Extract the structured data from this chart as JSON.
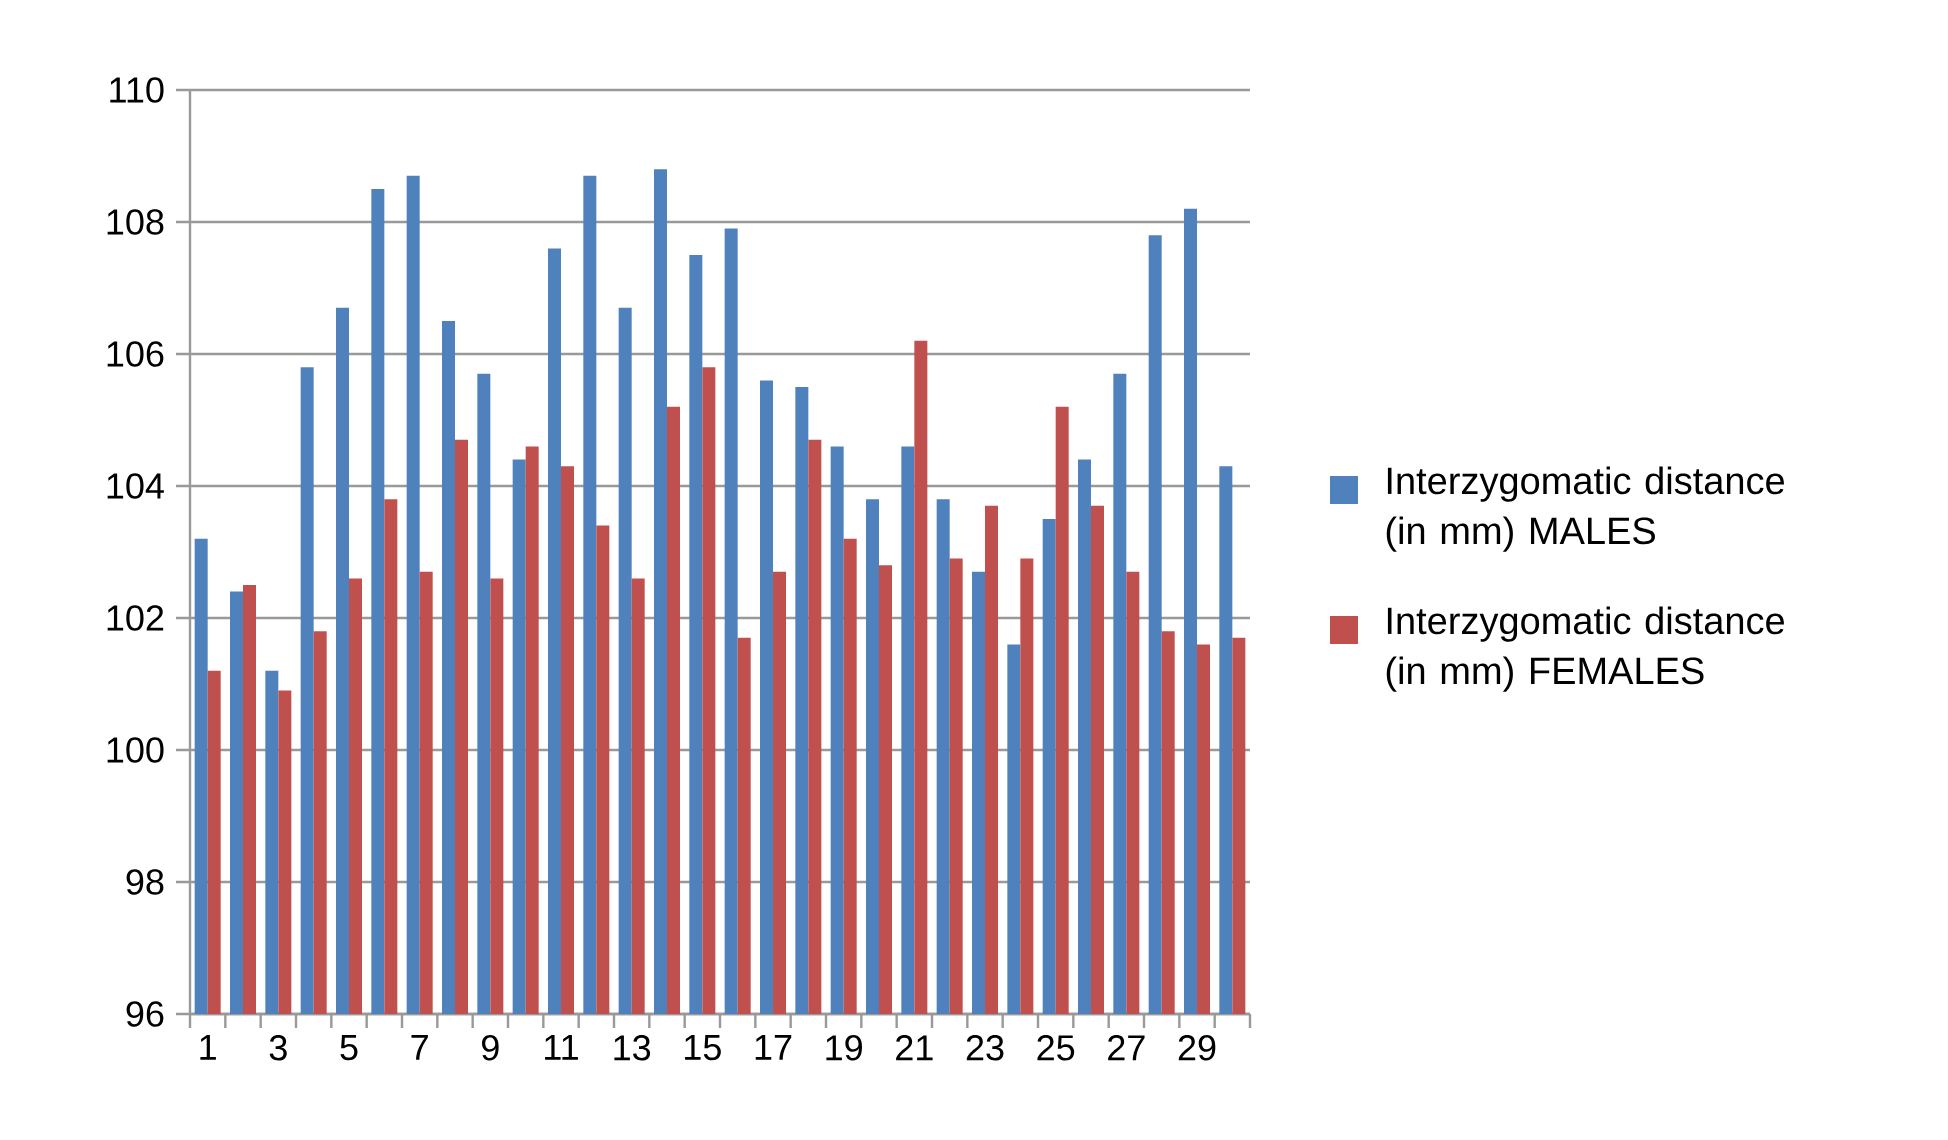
{
  "chart_data": {
    "type": "bar",
    "categories": [
      "1",
      null,
      "3",
      null,
      "5",
      null,
      "7",
      null,
      "9",
      null,
      "11",
      null,
      "13",
      null,
      "15",
      null,
      "17",
      null,
      "19",
      null,
      "21",
      null,
      "23",
      null,
      "25",
      null,
      "27",
      null,
      "29",
      null
    ],
    "series": [
      {
        "name": "Interzygomatic distance (in mm) MALES",
        "color": "#4f81bd",
        "values": [
          103.2,
          102.4,
          101.2,
          105.8,
          106.7,
          108.5,
          108.7,
          106.5,
          105.7,
          104.4,
          107.6,
          108.7,
          106.7,
          108.8,
          107.5,
          107.9,
          105.6,
          105.5,
          104.6,
          103.8,
          104.6,
          103.8,
          102.7,
          101.6,
          103.5,
          104.4,
          105.7,
          107.8,
          108.2,
          104.3
        ]
      },
      {
        "name": "Interzygomatic distance (in mm) FEMALES",
        "color": "#c0504d",
        "values": [
          101.2,
          102.5,
          100.9,
          101.8,
          102.6,
          103.8,
          102.7,
          104.7,
          102.6,
          104.6,
          104.3,
          103.4,
          102.6,
          105.2,
          105.8,
          101.7,
          102.7,
          104.7,
          103.2,
          102.8,
          106.2,
          102.9,
          103.7,
          102.9,
          105.2,
          103.7,
          102.7,
          101.8,
          101.6,
          101.7
        ]
      }
    ],
    "ylim": [
      96,
      110
    ],
    "yticks": [
      96,
      98,
      100,
      102,
      104,
      106,
      108,
      110
    ],
    "grid": "y",
    "legend": "right"
  }
}
